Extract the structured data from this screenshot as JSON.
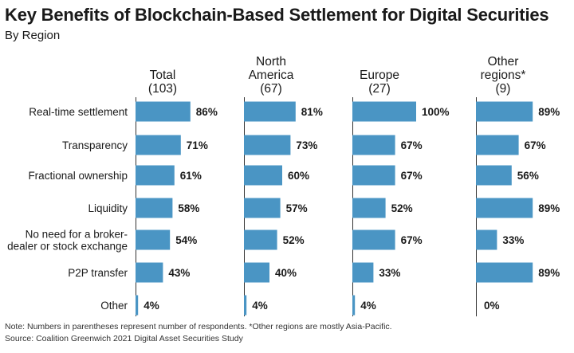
{
  "title": "Key Benefits of Blockchain-Based Settlement for Digital Securities",
  "subtitle": "By Region",
  "notes": {
    "note": "Note:  Numbers in parentheses represent number of respondents. *Other regions are mostly Asia-Pacific.",
    "source": "Source: Coalition Greenwich 2021 Digital Asset Securities Study"
  },
  "colors": {
    "bar": "#4a95c4",
    "axis": "#333333"
  },
  "chart_data": {
    "type": "bar",
    "orientation": "horizontal",
    "categories": [
      [
        "Real-time settlement"
      ],
      [
        "Transparency"
      ],
      [
        "Fractional ownership"
      ],
      [
        "Liquidity"
      ],
      [
        "No need for a broker-",
        "dealer or stock exchange"
      ],
      [
        "P2P transfer"
      ],
      [
        "Other"
      ]
    ],
    "value_suffix": "%",
    "series": [
      {
        "name": [
          "Total",
          "(103)"
        ],
        "values": [
          86,
          71,
          61,
          58,
          54,
          43,
          4
        ]
      },
      {
        "name": [
          "North",
          "America",
          "(67)"
        ],
        "values": [
          81,
          73,
          60,
          57,
          52,
          40,
          4
        ]
      },
      {
        "name": [
          "Europe",
          "(27)"
        ],
        "values": [
          100,
          67,
          67,
          52,
          67,
          33,
          4
        ]
      },
      {
        "name": [
          "Other",
          "regions*",
          "(9)"
        ],
        "values": [
          89,
          67,
          56,
          89,
          33,
          89,
          0
        ]
      }
    ],
    "xlim": [
      0,
      100
    ]
  }
}
